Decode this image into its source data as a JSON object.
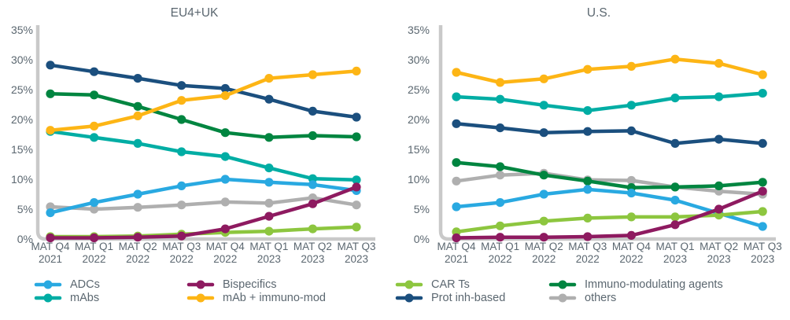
{
  "page": {
    "background": "#FFFFFF",
    "text_color": "#5B6770",
    "axis_color": "#C9C9C9"
  },
  "legend": {
    "items": [
      {
        "label": "ADCs"
      },
      {
        "label": "Bispecifics"
      },
      {
        "label": "CAR Ts"
      },
      {
        "label": "Immuno-modulating agents"
      },
      {
        "label": "mAbs"
      },
      {
        "label": "mAb + immuno-mod"
      },
      {
        "label": "Prot inh-based"
      },
      {
        "label": "others"
      }
    ]
  },
  "chart_data": [
    {
      "type": "line",
      "title": "EU4+UK",
      "categories": [
        "MAT Q4 2021",
        "MAT Q1 2022",
        "MAT Q2 2022",
        "MAT Q3 2022",
        "MAT Q4 2022",
        "MAT Q1 2023",
        "MAT Q2 2023",
        "MAT Q3 2023"
      ],
      "ylim": [
        0,
        35
      ],
      "yticks": [
        "0%",
        "5%",
        "10%",
        "15%",
        "20%",
        "25%",
        "30%",
        "35%"
      ],
      "grid": false,
      "legend_position": "bottom",
      "series": [
        {
          "name": "ADCs",
          "color": "#29A9E1",
          "values": [
            4.4,
            6.1,
            7.5,
            8.9,
            10.0,
            9.5,
            9.1,
            8.1
          ]
        },
        {
          "name": "Bispecifics",
          "color": "#8E1A60",
          "values": [
            0.2,
            0.2,
            0.3,
            0.5,
            1.7,
            3.8,
            5.9,
            8.7
          ]
        },
        {
          "name": "CAR Ts",
          "color": "#8DC63F",
          "values": [
            0.4,
            0.4,
            0.5,
            0.8,
            1.1,
            1.3,
            1.7,
            2.0
          ]
        },
        {
          "name": "Immuno-modulating agents",
          "color": "#008540",
          "values": [
            24.3,
            24.1,
            22.2,
            20.0,
            17.8,
            17.0,
            17.3,
            17.1
          ]
        },
        {
          "name": "mAbs",
          "color": "#00ADA4",
          "values": [
            18.0,
            17.0,
            16.0,
            14.6,
            13.8,
            11.9,
            10.1,
            9.9
          ]
        },
        {
          "name": "mAb + immuno-mod",
          "color": "#FDB515",
          "values": [
            18.2,
            18.9,
            20.6,
            23.2,
            24.0,
            26.9,
            27.5,
            28.1
          ]
        },
        {
          "name": "Prot inh-based",
          "color": "#1B4F7E",
          "values": [
            29.1,
            28.0,
            26.9,
            25.7,
            25.2,
            23.4,
            21.4,
            20.4
          ]
        },
        {
          "name": "others",
          "color": "#AFAFAF",
          "values": [
            5.4,
            5.0,
            5.3,
            5.7,
            6.2,
            6.0,
            6.9,
            5.7
          ]
        }
      ]
    },
    {
      "type": "line",
      "title": "U.S.",
      "categories": [
        "MAT Q4 2021",
        "MAT Q1 2022",
        "MAT Q2 2022",
        "MAT Q3 2022",
        "MAT Q4 2022",
        "MAT Q1 2023",
        "MAT Q2 2023",
        "MAT Q3 2023"
      ],
      "ylim": [
        0,
        35
      ],
      "yticks": [
        "0%",
        "5%",
        "10%",
        "15%",
        "20%",
        "25%",
        "30%",
        "35%"
      ],
      "grid": false,
      "legend_position": "bottom",
      "series": [
        {
          "name": "ADCs",
          "color": "#29A9E1",
          "values": [
            5.4,
            6.1,
            7.5,
            8.3,
            7.7,
            6.5,
            4.3,
            2.1
          ]
        },
        {
          "name": "Bispecifics",
          "color": "#8E1A60",
          "values": [
            0.2,
            0.3,
            0.3,
            0.4,
            0.6,
            2.4,
            5.0,
            8.0
          ]
        },
        {
          "name": "CAR Ts",
          "color": "#8DC63F",
          "values": [
            1.2,
            2.2,
            3.0,
            3.5,
            3.7,
            3.7,
            4.0,
            4.6
          ]
        },
        {
          "name": "Immuno-modulating agents",
          "color": "#008540",
          "values": [
            12.8,
            12.1,
            10.7,
            9.7,
            8.6,
            8.7,
            8.9,
            9.5
          ]
        },
        {
          "name": "mAbs",
          "color": "#00ADA4",
          "values": [
            23.8,
            23.4,
            22.4,
            21.5,
            22.4,
            23.6,
            23.8,
            24.4
          ]
        },
        {
          "name": "mAb + immuno-mod",
          "color": "#FDB515",
          "values": [
            27.9,
            26.2,
            26.8,
            28.4,
            28.9,
            30.1,
            29.4,
            27.5
          ]
        },
        {
          "name": "Prot inh-based",
          "color": "#1B4F7E",
          "values": [
            19.3,
            18.6,
            17.8,
            18.0,
            18.1,
            16.0,
            16.7,
            16.0
          ]
        },
        {
          "name": "others",
          "color": "#AFAFAF",
          "values": [
            9.7,
            10.7,
            11.0,
            9.9,
            9.8,
            8.7,
            8.0,
            7.5
          ]
        }
      ]
    }
  ]
}
